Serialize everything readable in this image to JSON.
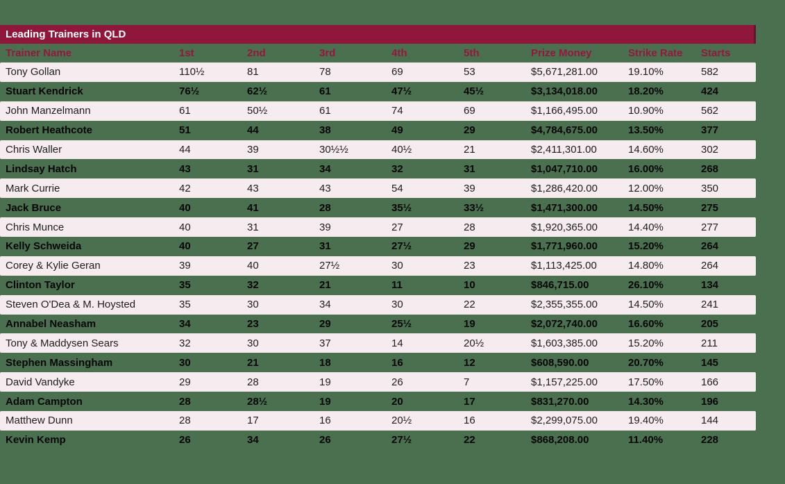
{
  "page": {
    "background_color": "#4A7050"
  },
  "table": {
    "title": "Leading Trainers in QLD",
    "title_bar_color": "#8E173B",
    "header_text_color": "#93183E",
    "alt_row_color": "#F6ECEF",
    "columns": [
      "Trainer Name",
      "1st",
      "2nd",
      "3rd",
      "4th",
      "5th",
      "Prize Money",
      "Strike Rate",
      "Starts"
    ],
    "rows": [
      [
        "Tony Gollan",
        "110½",
        "81",
        "78",
        "69",
        "53",
        "$5,671,281.00",
        "19.10%",
        "582"
      ],
      [
        "Stuart Kendrick",
        "76½",
        "62½",
        "61",
        "47½",
        "45½",
        "$3,134,018.00",
        "18.20%",
        "424"
      ],
      [
        "John Manzelmann",
        "61",
        "50½",
        "61",
        "74",
        "69",
        "$1,166,495.00",
        "10.90%",
        "562"
      ],
      [
        "Robert Heathcote",
        "51",
        "44",
        "38",
        "49",
        "29",
        "$4,784,675.00",
        "13.50%",
        "377"
      ],
      [
        "Chris Waller",
        "44",
        "39",
        "30½½",
        "40½",
        "21",
        "$2,411,301.00",
        "14.60%",
        "302"
      ],
      [
        "Lindsay Hatch",
        "43",
        "31",
        "34",
        "32",
        "31",
        "$1,047,710.00",
        "16.00%",
        "268"
      ],
      [
        "Mark Currie",
        "42",
        "43",
        "43",
        "54",
        "39",
        "$1,286,420.00",
        "12.00%",
        "350"
      ],
      [
        "Jack Bruce",
        "40",
        "41",
        "28",
        "35½",
        "33½",
        "$1,471,300.00",
        "14.50%",
        "275"
      ],
      [
        "Chris Munce",
        "40",
        "31",
        "39",
        "27",
        "28",
        "$1,920,365.00",
        "14.40%",
        "277"
      ],
      [
        "Kelly Schweida",
        "40",
        "27",
        "31",
        "27½",
        "29",
        "$1,771,960.00",
        "15.20%",
        "264"
      ],
      [
        "Corey & Kylie Geran",
        "39",
        "40",
        "27½",
        "30",
        "23",
        "$1,113,425.00",
        "14.80%",
        "264"
      ],
      [
        "Clinton Taylor",
        "35",
        "32",
        "21",
        "11",
        "10",
        "$846,715.00",
        "26.10%",
        "134"
      ],
      [
        "Steven O'Dea & M. Hoysted",
        "35",
        "30",
        "34",
        "30",
        "22",
        "$2,355,355.00",
        "14.50%",
        "241"
      ],
      [
        "Annabel Neasham",
        "34",
        "23",
        "29",
        "25½",
        "19",
        "$2,072,740.00",
        "16.60%",
        "205"
      ],
      [
        "Tony & Maddysen Sears",
        "32",
        "30",
        "37",
        "14",
        "20½",
        "$1,603,385.00",
        "15.20%",
        "211"
      ],
      [
        "Stephen Massingham",
        "30",
        "21",
        "18",
        "16",
        "12",
        "$608,590.00",
        "20.70%",
        "145"
      ],
      [
        "David Vandyke",
        "29",
        "28",
        "19",
        "26",
        "7",
        "$1,157,225.00",
        "17.50%",
        "166"
      ],
      [
        "Adam Campton",
        "28",
        "28½",
        "19",
        "20",
        "17",
        "$831,270.00",
        "14.30%",
        "196"
      ],
      [
        "Matthew Dunn",
        "28",
        "17",
        "16",
        "20½",
        "16",
        "$2,299,075.00",
        "19.40%",
        "144"
      ],
      [
        "Kevin Kemp",
        "26",
        "34",
        "26",
        "27½",
        "22",
        "$868,208.00",
        "11.40%",
        "228"
      ]
    ]
  }
}
